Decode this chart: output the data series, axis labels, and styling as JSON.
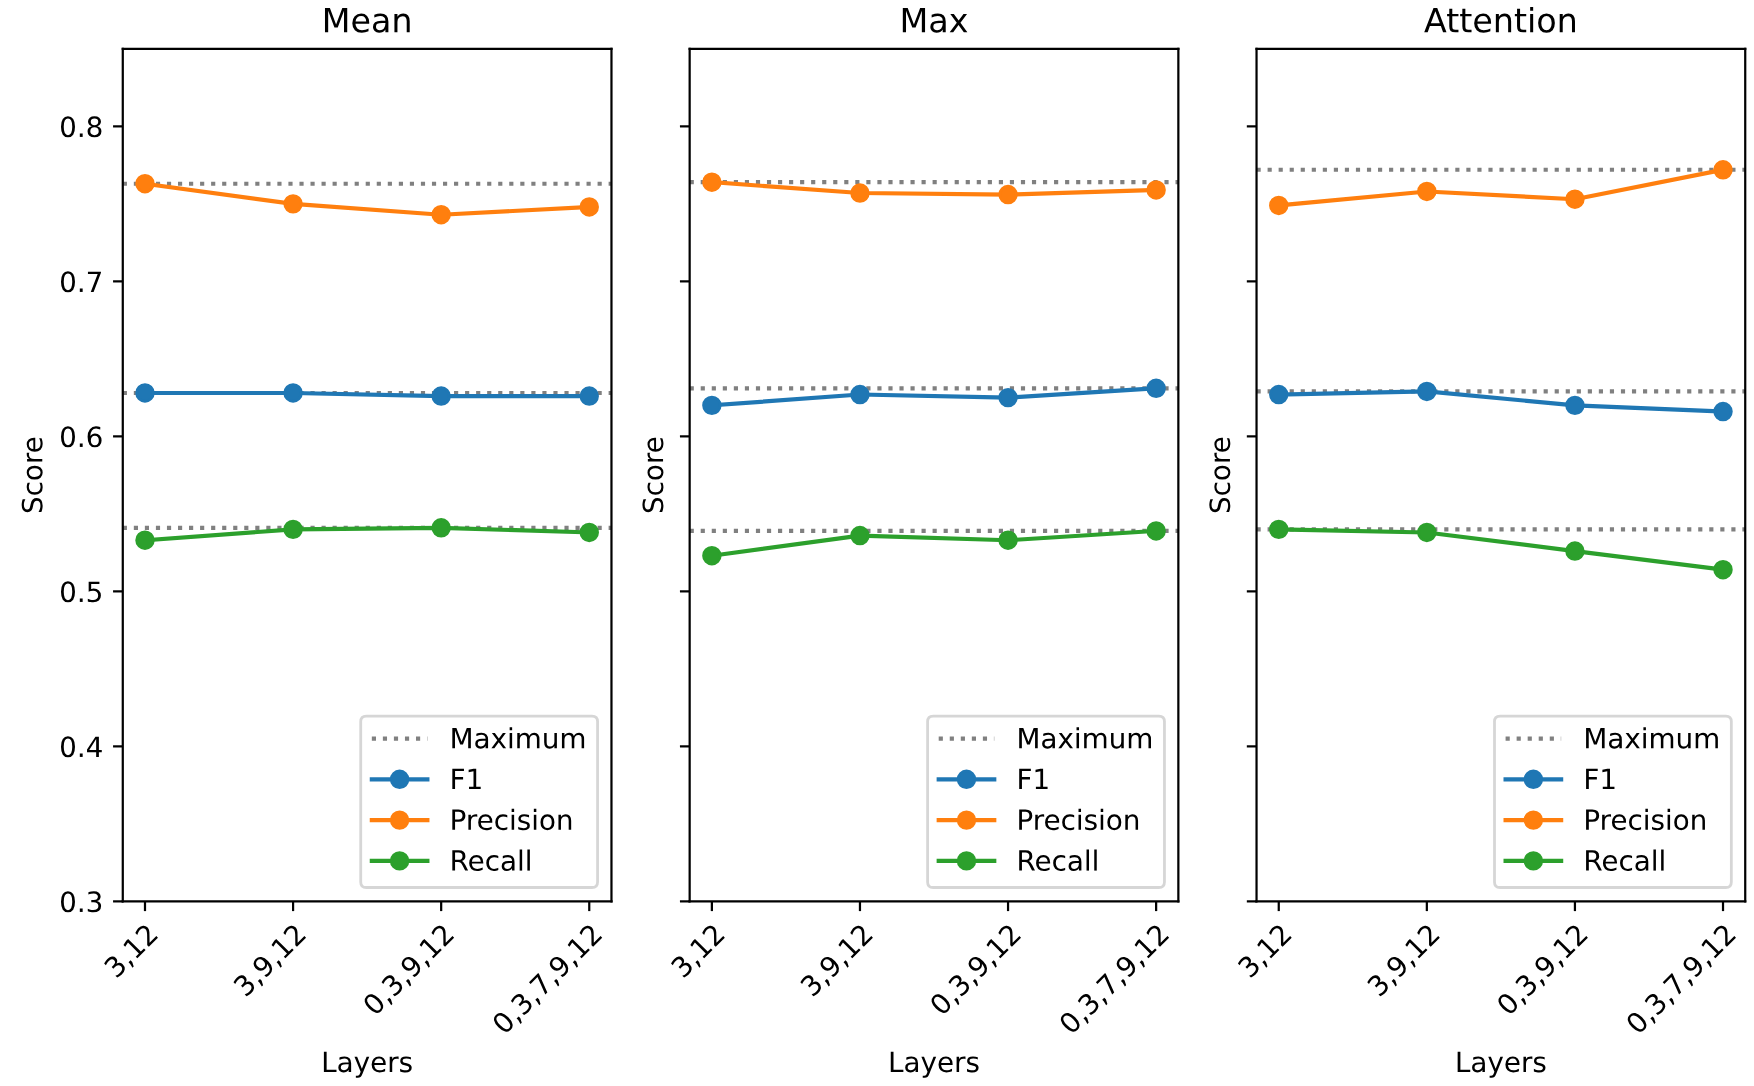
{
  "chart_data": [
    {
      "type": "line",
      "title": "Mean",
      "xlabel": "Layers",
      "ylabel": "Score",
      "categories": [
        "3,12",
        "3,9,12",
        "0,3,9,12",
        "0,3,7,9,12"
      ],
      "ylim": [
        0.3,
        0.85
      ],
      "yticks": [
        0.3,
        0.4,
        0.5,
        0.6,
        0.7,
        0.8
      ],
      "marker": "circle",
      "legend": "bottom right",
      "grid": false,
      "ref_lines": [
        {
          "axis": "y",
          "value": 0.763,
          "label": "Maximum",
          "color": "#808080",
          "line_style": "dotted"
        },
        {
          "axis": "y",
          "value": 0.628,
          "color": "#808080",
          "line_style": "dotted"
        },
        {
          "axis": "y",
          "value": 0.541,
          "color": "#808080",
          "line_style": "dotted"
        }
      ],
      "series": [
        {
          "name": "F1",
          "color": "#1f77b4",
          "values": [
            0.628,
            0.628,
            0.626,
            0.626
          ]
        },
        {
          "name": "Precision",
          "color": "#ff7f0e",
          "values": [
            0.763,
            0.75,
            0.743,
            0.748
          ]
        },
        {
          "name": "Recall",
          "color": "#2ca02c",
          "values": [
            0.533,
            0.54,
            0.541,
            0.538
          ]
        }
      ]
    },
    {
      "type": "line",
      "title": "Max",
      "xlabel": "Layers",
      "ylabel": "Score",
      "categories": [
        "3,12",
        "3,9,12",
        "0,3,9,12",
        "0,3,7,9,12"
      ],
      "ylim": [
        0.3,
        0.85
      ],
      "yticks": [
        0.3,
        0.4,
        0.5,
        0.6,
        0.7,
        0.8
      ],
      "tick_labels": "x",
      "marker": "circle",
      "legend": "bottom right",
      "grid": false,
      "ref_lines": [
        {
          "axis": "y",
          "value": 0.764,
          "label": "Maximum",
          "color": "#808080",
          "line_style": "dotted"
        },
        {
          "axis": "y",
          "value": 0.631,
          "color": "#808080",
          "line_style": "dotted"
        },
        {
          "axis": "y",
          "value": 0.539,
          "color": "#808080",
          "line_style": "dotted"
        }
      ],
      "series": [
        {
          "name": "F1",
          "color": "#1f77b4",
          "values": [
            0.62,
            0.627,
            0.625,
            0.631
          ]
        },
        {
          "name": "Precision",
          "color": "#ff7f0e",
          "values": [
            0.764,
            0.757,
            0.756,
            0.759
          ]
        },
        {
          "name": "Recall",
          "color": "#2ca02c",
          "values": [
            0.523,
            0.536,
            0.533,
            0.539
          ]
        }
      ]
    },
    {
      "type": "line",
      "title": "Attention",
      "xlabel": "Layers",
      "ylabel": "Score",
      "categories": [
        "3,12",
        "3,9,12",
        "0,3,9,12",
        "0,3,7,9,12"
      ],
      "ylim": [
        0.3,
        0.85
      ],
      "yticks": [
        0.3,
        0.4,
        0.5,
        0.6,
        0.7,
        0.8
      ],
      "tick_labels": "x",
      "marker": "circle",
      "legend": "bottom right",
      "grid": false,
      "ref_lines": [
        {
          "axis": "y",
          "value": 0.772,
          "label": "Maximum",
          "color": "#808080",
          "line_style": "dotted"
        },
        {
          "axis": "y",
          "value": 0.629,
          "color": "#808080",
          "line_style": "dotted"
        },
        {
          "axis": "y",
          "value": 0.54,
          "color": "#808080",
          "line_style": "dotted"
        }
      ],
      "series": [
        {
          "name": "F1",
          "color": "#1f77b4",
          "values": [
            0.627,
            0.629,
            0.62,
            0.616
          ]
        },
        {
          "name": "Precision",
          "color": "#ff7f0e",
          "values": [
            0.749,
            0.758,
            0.753,
            0.772
          ]
        },
        {
          "name": "Recall",
          "color": "#2ca02c",
          "values": [
            0.54,
            0.538,
            0.526,
            0.514
          ]
        }
      ]
    }
  ]
}
